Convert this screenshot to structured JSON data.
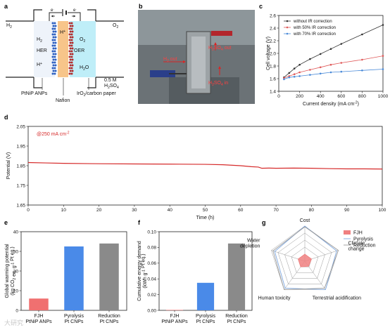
{
  "panels": {
    "a": "a",
    "b": "b",
    "c": "c",
    "d": "d",
    "e": "e",
    "f": "f",
    "g": "g"
  },
  "panel_a": {
    "h2": "H",
    "h2_sub": "2",
    "o2": "O",
    "o2_sub": "2",
    "e_left": "e",
    "e_right": "e",
    "minus": "-",
    "hplus_center": "H",
    "plus": "+",
    "her": "HER",
    "oer": "OER",
    "h2_in": "H",
    "h2_in_sub": "2",
    "hplus_left": "H",
    "o2_in": "O",
    "o2_in_sub": "2",
    "h2o": "H",
    "h2o_sub": "2",
    "h2o_o": "O",
    "acid_conc": "0.5 M",
    "acid": "H",
    "acid_sub": "2",
    "acid_so": "SO",
    "acid_sub2": "4",
    "cat_left": "PtNiP ANPs",
    "membrane": "Nafion",
    "cat_right": "IrO",
    "cat_right_sub": "2",
    "cat_right_rest": "/carbon paper"
  },
  "panel_b": {
    "out_left": "H",
    "out_left_sub": "2",
    "out_left_rest": " out",
    "out_right": "H",
    "out_right_sub": "2",
    "out_right_so": "SO",
    "out_right_sub2": "4",
    "out_right_rest": " out",
    "in_right": "H",
    "in_right_sub": "2",
    "in_right_so": "SO",
    "in_right_sub2": "4",
    "in_right_rest": " in"
  },
  "watermark": "大研究",
  "chart_data": [
    {
      "panel": "c",
      "type": "line",
      "xlabel": "Current density (mA cm",
      "xlabel_sup": "-2",
      "xlabel_end": ")",
      "ylabel": "Cell voltage (V)",
      "xlim": [
        0,
        1000
      ],
      "ylim": [
        1.4,
        2.6
      ],
      "xticks": [
        0,
        200,
        400,
        600,
        800,
        1000
      ],
      "yticks": [
        1.4,
        1.6,
        1.8,
        2.0,
        2.2,
        2.4,
        2.6
      ],
      "yticklabels": [
        "1.4",
        "1.6",
        "1.8",
        "2.0",
        "2.2",
        "2.4",
        "2.6"
      ],
      "legend": "top-left",
      "series": [
        {
          "name": "without IR correction",
          "color": "#333333",
          "x": [
            50,
            100,
            150,
            200,
            300,
            400,
            500,
            600,
            800,
            1000
          ],
          "y": [
            1.62,
            1.69,
            1.76,
            1.82,
            1.91,
            1.99,
            2.07,
            2.15,
            2.3,
            2.45
          ]
        },
        {
          "name": "with 50% IR correction",
          "color": "#e05a5a",
          "x": [
            50,
            100,
            150,
            200,
            300,
            400,
            500,
            600,
            800,
            1000
          ],
          "y": [
            1.61,
            1.64,
            1.67,
            1.7,
            1.74,
            1.78,
            1.82,
            1.85,
            1.9,
            1.96
          ]
        },
        {
          "name": "with 70% IR correction",
          "color": "#4a8ad8",
          "x": [
            50,
            100,
            150,
            200,
            300,
            400,
            500,
            600,
            800,
            1000
          ],
          "y": [
            1.59,
            1.62,
            1.63,
            1.64,
            1.66,
            1.68,
            1.7,
            1.71,
            1.73,
            1.75
          ]
        }
      ]
    },
    {
      "panel": "d",
      "type": "line",
      "xlabel": "Time (h)",
      "ylabel": "Potential (V)",
      "xlim": [
        0,
        100
      ],
      "ylim": [
        1.65,
        2.05
      ],
      "xticks": [
        0,
        10,
        20,
        30,
        40,
        50,
        60,
        70,
        80,
        90,
        100
      ],
      "yticks": [
        1.65,
        1.75,
        1.85,
        1.95,
        2.05
      ],
      "yticklabels": [
        "1.65",
        "1.75",
        "1.85",
        "1.95",
        "2.05"
      ],
      "annotation": "@250 mA cm",
      "annotation_sup": "-2",
      "series": [
        {
          "color": "#d62a2a",
          "x": [
            0,
            5,
            10,
            20,
            30,
            40,
            50,
            55,
            60,
            63,
            65,
            66,
            68,
            70,
            75,
            80,
            85,
            90,
            95,
            100
          ],
          "y": [
            1.866,
            1.864,
            1.862,
            1.86,
            1.859,
            1.858,
            1.857,
            1.855,
            1.85,
            1.845,
            1.843,
            1.837,
            1.838,
            1.837,
            1.838,
            1.837,
            1.835,
            1.834,
            1.834,
            1.833
          ]
        }
      ]
    },
    {
      "panel": "e",
      "type": "bar",
      "categories": [
        [
          "FJH",
          "PtNiP ANPs"
        ],
        [
          "Pyrolysis",
          "Pt CNPs"
        ],
        [
          "Reduction",
          "Pt CNPs"
        ]
      ],
      "values": [
        6,
        32.5,
        34
      ],
      "colors": [
        "#f07070",
        "#4a8ae8",
        "#8a8a8a"
      ],
      "ylim": [
        0,
        40
      ],
      "yticks": [
        0,
        10,
        20,
        30,
        40
      ],
      "ylabel_lines": [
        "Global warming potential",
        "(kg CO",
        "2",
        " eq. g",
        "-1",
        " Pt eq.)"
      ]
    },
    {
      "panel": "f",
      "type": "bar",
      "categories": [
        [
          "FJH",
          "PtNiP ANPs"
        ],
        [
          "Pyrolysis",
          "Pt CNPs"
        ],
        [
          "Reduction",
          "Pt CNPs"
        ]
      ],
      "values": [
        0.0005,
        0.035,
        0.085
      ],
      "colors": [
        "#f07070",
        "#4a8ae8",
        "#8a8a8a"
      ],
      "ylim": [
        0,
        0.1
      ],
      "yticks": [
        0,
        0.02,
        0.04,
        0.06,
        0.08,
        0.1
      ],
      "yticklabels": [
        "0.00",
        "0.02",
        "0.04",
        "0.06",
        "0.08",
        "0.10"
      ],
      "ylabel_lines": [
        "Cumulative energy demand",
        "(kWh g",
        "-1",
        " Pt eq.)"
      ]
    },
    {
      "panel": "g",
      "type": "radar",
      "axes": [
        "Cost",
        "Climate change",
        "Terrestrial acidification",
        "Human toxicity",
        "Water depletion"
      ],
      "axis_label_lines": [
        [
          "Cost"
        ],
        [
          "Climate",
          "change"
        ],
        [
          "Terrestrial acidification"
        ],
        [
          "Human toxicity"
        ],
        [
          "Water",
          "depletion"
        ]
      ],
      "legend": "top-right",
      "series": [
        {
          "name": "FJH",
          "color": "#f08080",
          "fill": true,
          "values": [
            0.2,
            0.2,
            0.18,
            0.2,
            0.2
          ]
        },
        {
          "name": "Pyrolysis",
          "color": "#7fa8e0",
          "fill": false,
          "values": [
            1.0,
            0.95,
            1.0,
            0.95,
            0.9
          ]
        },
        {
          "name": "Reduction",
          "color": "#9a9a9a",
          "fill": false,
          "values": [
            0.98,
            1.0,
            0.95,
            1.0,
            0.95
          ]
        }
      ]
    }
  ]
}
